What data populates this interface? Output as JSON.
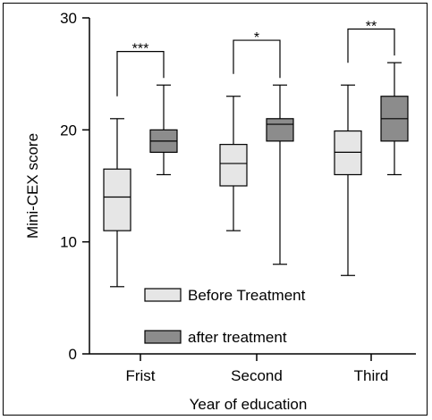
{
  "chart_data": {
    "type": "box",
    "xlabel": "Year of education",
    "ylabel": "Mini-CEX score",
    "ylim": [
      0,
      30
    ],
    "yticks": [
      0,
      10,
      20,
      30
    ],
    "categories": [
      "Frist",
      "Second",
      "Third"
    ],
    "grid": false,
    "legend_position": "bottom-center",
    "series": [
      {
        "name": "Before Treatment",
        "color": "#e6e6e6",
        "boxes": [
          {
            "min": 6,
            "q1": 11,
            "median": 14,
            "q3": 16.5,
            "max": 21
          },
          {
            "min": 11,
            "q1": 15,
            "median": 17,
            "q3": 18.7,
            "max": 23
          },
          {
            "min": 7,
            "q1": 16,
            "median": 18,
            "q3": 19.9,
            "max": 24
          }
        ]
      },
      {
        "name": "after treatment",
        "color": "#8c8c8c",
        "boxes": [
          {
            "min": 16,
            "q1": 18,
            "median": 19,
            "q3": 20,
            "max": 24
          },
          {
            "min": 8,
            "q1": 19,
            "median": 20.5,
            "q3": 21,
            "max": 24
          },
          {
            "min": 16,
            "q1": 19,
            "median": 21,
            "q3": 23,
            "max": 26
          }
        ]
      }
    ],
    "significance": [
      {
        "category": "Frist",
        "label": "***",
        "y": 27
      },
      {
        "category": "Second",
        "label": "*",
        "y": 28
      },
      {
        "category": "Third",
        "label": "**",
        "y": 29
      }
    ]
  }
}
